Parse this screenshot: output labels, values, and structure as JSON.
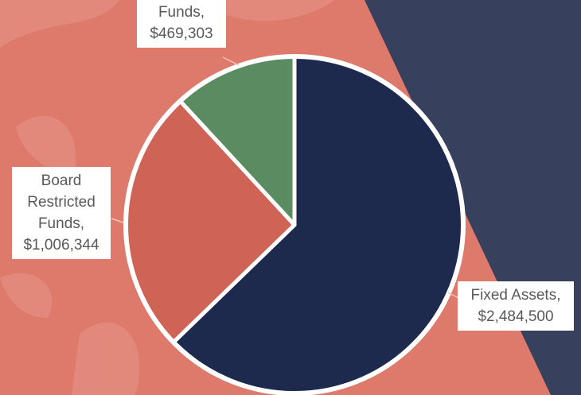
{
  "chart_data": {
    "type": "pie",
    "categories": [
      "Fixed Assets,",
      "Board Restricted Funds,",
      "Funds,"
    ],
    "values": [
      2484500,
      1006344,
      469303
    ],
    "value_labels": [
      "$2,484,500",
      "$1,006,344",
      "$469,303"
    ],
    "colors": [
      "#1d2a4e",
      "#cf6356",
      "#5b8b60"
    ]
  }
}
